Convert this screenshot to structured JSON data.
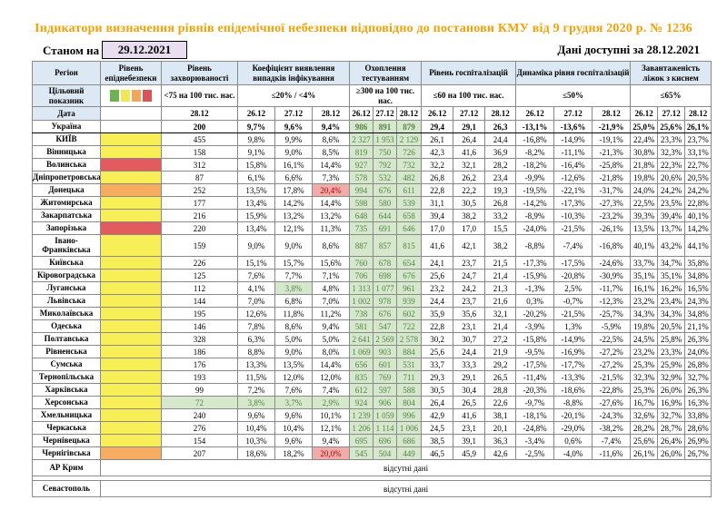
{
  "title": "Індикатори визначення рівнів епідемічної небезпеки відповідно до постанови КМУ від 9 грудня 2020 р. № 1236",
  "asof": {
    "label": "Станом на",
    "date": "29.12.2021"
  },
  "avail": {
    "label": "Дані доступні за",
    "date": "28.12.2021"
  },
  "table": {
    "region_header": "Регіон",
    "target_header": "Цільовий показник",
    "date_header": "Дата",
    "groups": [
      {
        "label": "Рівень епіднебезпеки",
        "threshold": "",
        "dates": []
      },
      {
        "label": "Рівень захворюваності",
        "threshold": "<75 на 100 тис. нас.",
        "dates": [
          "28.12"
        ]
      },
      {
        "label": "Коефіцієнт виявлення випадків інфікування",
        "threshold": "≤20% / <4%",
        "dates": [
          "26.12",
          "27.12",
          "28.12"
        ]
      },
      {
        "label": "Охоплення тестуванням",
        "threshold": "≥300 на 100 тис. нас.",
        "dates": [
          "26.12",
          "27.12",
          "28.12"
        ]
      },
      {
        "label": "Рівень госпіталізацій",
        "threshold": "≤60 на 100 тис. нас.",
        "dates": [
          "26.12",
          "27.12",
          "28.12"
        ]
      },
      {
        "label": "Динаміка рівня госпіталізацій",
        "threshold": "≤50%",
        "dates": [
          "26.12",
          "27.12",
          "28.12"
        ]
      },
      {
        "label": "Завантаженість ліжок з киснем",
        "threshold": "≤65%",
        "dates": [
          "26.12",
          "27.12",
          "28.12"
        ]
      }
    ],
    "legend_colors": [
      "#6fb152",
      "#efe658",
      "#f2a55c",
      "#d95457"
    ],
    "level_colors": {
      "yellow": "#f7ee58",
      "orange": "#f6ad5f",
      "red": "#e25b5e",
      "none": "#ffffff"
    },
    "rows": [
      {
        "region": "Україна",
        "level": "none",
        "bold": true,
        "cells": [
          "200",
          "9,7%",
          "9,6%",
          "9,4%",
          "986",
          "891",
          "879",
          "29,4",
          "29,1",
          "26,3",
          "-13,1%",
          "-13,6%",
          "-21,9%",
          "25,0%",
          "25,6%",
          "26,1%"
        ]
      },
      {
        "region": "КИЇВ",
        "level": "yellow",
        "cells": [
          "455",
          "9,8%",
          "9,9%",
          "8,6%",
          "2 327",
          "1 953",
          "2 129",
          "26,1",
          "26,4",
          "24,4",
          "-16,8%",
          "-14,9%",
          "-19,1%",
          "22,4%",
          "23,3%",
          "23,7%"
        ]
      },
      {
        "region": "Вінницька",
        "level": "yellow",
        "cells": [
          "158",
          "9,1%",
          "9,0%",
          "8,5%",
          "819",
          "750",
          "726",
          "42,3",
          "41,6",
          "36,9",
          "-8,2%",
          "-11,1%",
          "-21,3%",
          "30,8%",
          "32,3%",
          "33,1%"
        ]
      },
      {
        "region": "Волинська",
        "level": "red",
        "cells": [
          "312",
          "15,8%",
          "16,1%",
          "14,4%",
          "927",
          "792",
          "732",
          "32,2",
          "32,1",
          "28,2",
          "-18,2%",
          "-16,4%",
          "-25,8%",
          "21,8%",
          "22,3%",
          "22,7%"
        ]
      },
      {
        "region": "Дніпропетровська",
        "level": "yellow",
        "cells": [
          "87",
          "6,1%",
          "6,6%",
          "7,3%",
          "578",
          "532",
          "482",
          "26,8",
          "26,2",
          "23,4",
          "-9,9%",
          "-12,6%",
          "-21,8%",
          "19,8%",
          "20,6%",
          "20,5%"
        ]
      },
      {
        "region": "Донецька",
        "level": "orange",
        "cells": [
          "252",
          "13,5%",
          "17,8%",
          "20,4%",
          "994",
          "676",
          "611",
          "22,8",
          "22,2",
          "19,3",
          "-19,5%",
          "-22,1%",
          "-31,7%",
          "24,0%",
          "24,2%",
          "24,2%"
        ],
        "hl": {
          "3": "red"
        }
      },
      {
        "region": "Житомирська",
        "level": "yellow",
        "cells": [
          "177",
          "13,4%",
          "14,2%",
          "14,4%",
          "598",
          "580",
          "539",
          "31,1",
          "30,5",
          "26,8",
          "-14,2%",
          "-17,3%",
          "-27,3%",
          "22,5%",
          "23,5%",
          "22,8%"
        ]
      },
      {
        "region": "Закарпатська",
        "level": "yellow",
        "cells": [
          "216",
          "15,9%",
          "13,2%",
          "13,2%",
          "648",
          "644",
          "658",
          "39,4",
          "38,2",
          "33,2",
          "-8,9%",
          "-10,3%",
          "-23,2%",
          "39,3%",
          "39,4%",
          "40,1%"
        ]
      },
      {
        "region": "Запорізька",
        "level": "red",
        "cells": [
          "220",
          "13,4%",
          "12,1%",
          "11,3%",
          "735",
          "691",
          "646",
          "17,0",
          "17,0",
          "15,5",
          "-24,0%",
          "-21,5%",
          "-26,1%",
          "13,5%",
          "13,7%",
          "14,2%"
        ]
      },
      {
        "region": "Івано-Франківська",
        "level": "yellow",
        "tall": true,
        "cells": [
          "159",
          "9,0%",
          "9,0%",
          "8,6%",
          "887",
          "857",
          "815",
          "41,6",
          "42,1",
          "38,2",
          "-8,8%",
          "-7,4%",
          "-16,8%",
          "40,1%",
          "43,2%",
          "44,1%"
        ]
      },
      {
        "region": "Київська",
        "level": "yellow",
        "cells": [
          "226",
          "15,1%",
          "15,7%",
          "15,6%",
          "760",
          "678",
          "654",
          "24,1",
          "23,7",
          "21,5",
          "-17,3%",
          "-17,5%",
          "-24,6%",
          "33,7%",
          "34,7%",
          "35,8%"
        ]
      },
      {
        "region": "Кіровоградська",
        "level": "yellow",
        "cells": [
          "125",
          "7,6%",
          "7,7%",
          "7,1%",
          "706",
          "698",
          "676",
          "25,6",
          "24,7",
          "21,4",
          "-15,9%",
          "-20,8%",
          "-30,9%",
          "35,1%",
          "35,1%",
          "34,8%"
        ]
      },
      {
        "region": "Луганська",
        "level": "yellow",
        "cells": [
          "112",
          "4,1%",
          "3,8%",
          "4,8%",
          "1 313",
          "1 077",
          "961",
          "23,2",
          "24,2",
          "21,3",
          "-1,3%",
          "2,5%",
          "-11,7%",
          "16,1%",
          "16,2%",
          "16,5%"
        ],
        "hl": {
          "2": "green"
        }
      },
      {
        "region": "Львівська",
        "level": "yellow",
        "cells": [
          "144",
          "7,0%",
          "6,8%",
          "7,0%",
          "1 002",
          "978",
          "939",
          "24,4",
          "23,7",
          "21,6",
          "0,3%",
          "-0,7%",
          "-12,3%",
          "23,2%",
          "23,4%",
          "24,3%"
        ]
      },
      {
        "region": "Миколаївська",
        "level": "yellow",
        "cells": [
          "195",
          "12,6%",
          "11,8%",
          "11,2%",
          "738",
          "676",
          "602",
          "35,9",
          "35,6",
          "32,1",
          "-20,2%",
          "-21,5%",
          "-25,7%",
          "34,3%",
          "34,3%",
          "34,8%"
        ]
      },
      {
        "region": "Одеська",
        "level": "yellow",
        "cells": [
          "146",
          "7,8%",
          "8,6%",
          "9,4%",
          "581",
          "547",
          "722",
          "22,8",
          "23,1",
          "21,4",
          "-3,9%",
          "1,3%",
          "-5,9%",
          "19,8%",
          "20,5%",
          "21,1%"
        ]
      },
      {
        "region": "Полтавська",
        "level": "yellow",
        "cells": [
          "328",
          "6,3%",
          "5,0%",
          "5,0%",
          "2 641",
          "2 569",
          "2 578",
          "30,2",
          "30,7",
          "27,2",
          "-15,8%",
          "-14,9%",
          "-22,5%",
          "24,5%",
          "25,8%",
          "26,3%"
        ]
      },
      {
        "region": "Рівненська",
        "level": "yellow",
        "cells": [
          "186",
          "8,8%",
          "9,0%",
          "8,0%",
          "1 069",
          "903",
          "884",
          "25,6",
          "24,4",
          "21,9",
          "-9,5%",
          "-16,9%",
          "-27,2%",
          "23,2%",
          "23,3%",
          "24,0%"
        ]
      },
      {
        "region": "Сумська",
        "level": "yellow",
        "cells": [
          "176",
          "13,3%",
          "13,5%",
          "14,4%",
          "656",
          "601",
          "531",
          "33,7",
          "33,3",
          "29,2",
          "-17,5%",
          "-17,7%",
          "-27,2%",
          "25,3%",
          "25,9%",
          "26,8%"
        ]
      },
      {
        "region": "Тернопільська",
        "level": "yellow",
        "cells": [
          "193",
          "11,5%",
          "12,0%",
          "12,0%",
          "835",
          "769",
          "711",
          "29,3",
          "29,1",
          "26,5",
          "-11,4%",
          "-13,3%",
          "-21,5%",
          "32,3%",
          "32,9%",
          "32,7%"
        ]
      },
      {
        "region": "Харківська",
        "level": "yellow",
        "cells": [
          "99",
          "7,2%",
          "7,6%",
          "7,4%",
          "612",
          "597",
          "588",
          "30,5",
          "30,4",
          "28,8",
          "-20,3%",
          "-18,6%",
          "-22,8%",
          "25,3%",
          "26,0%",
          "26,3%"
        ]
      },
      {
        "region": "Херсонська",
        "level": "yellow",
        "cells": [
          "72",
          "3,8%",
          "3,7%",
          "2,9%",
          "924",
          "906",
          "804",
          "26,4",
          "26,5",
          "22,6",
          "-9,7%",
          "-8,8%",
          "-27,6%",
          "16,7%",
          "16,9%",
          "16,3%"
        ],
        "hl": {
          "0": "green",
          "1": "green",
          "2": "green",
          "3": "green"
        }
      },
      {
        "region": "Хмельницька",
        "level": "yellow",
        "cells": [
          "240",
          "9,6%",
          "9,6%",
          "10,1%",
          "1 239",
          "1 059",
          "996",
          "42,9",
          "41,6",
          "38,1",
          "-18,1%",
          "-20,1%",
          "-24,3%",
          "32,6%",
          "32,7%",
          "33,8%"
        ]
      },
      {
        "region": "Черкаська",
        "level": "yellow",
        "cells": [
          "276",
          "10,4%",
          "10,4%",
          "12,1%",
          "1 206",
          "1 114",
          "1 006",
          "24,5",
          "23,1",
          "20,1",
          "-24,8%",
          "-29,0%",
          "-38,2%",
          "28,2%",
          "28,7%",
          "28,6%"
        ]
      },
      {
        "region": "Чернівецька",
        "level": "yellow",
        "cells": [
          "154",
          "10,3%",
          "9,6%",
          "9,4%",
          "695",
          "696",
          "686",
          "38,5",
          "39,1",
          "36,3",
          "-3,4%",
          "0,6%",
          "-7,4%",
          "25,6%",
          "26,4%",
          "26,9%"
        ]
      },
      {
        "region": "Чернігівська",
        "level": "orange",
        "cells": [
          "207",
          "18,6%",
          "18,2%",
          "20,0%",
          "545",
          "504",
          "449",
          "46,5",
          "45,9",
          "42,6",
          "-2,5%",
          "-4,0%",
          "-11,6%",
          "26,1%",
          "26,0%",
          "26,7%"
        ],
        "hl": {
          "3": "red"
        }
      }
    ],
    "no_data": [
      {
        "region": "АР Крим",
        "text": "відсутні дані"
      },
      {
        "region": "Севастополь",
        "text": "відсутні дані"
      }
    ]
  }
}
